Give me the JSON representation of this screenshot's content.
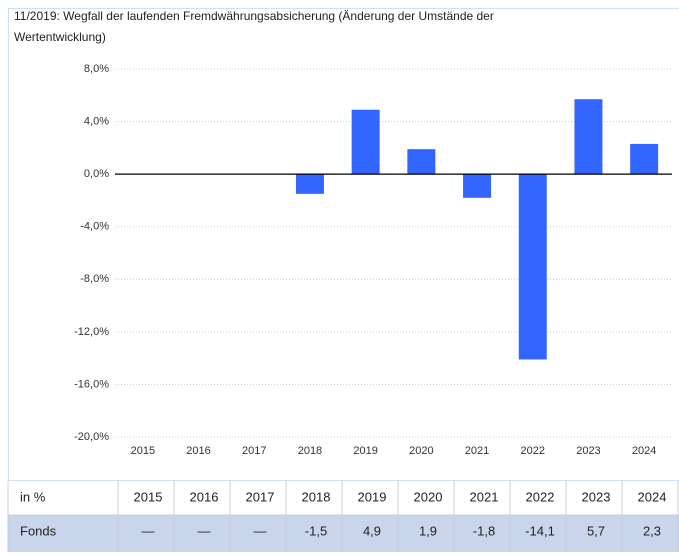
{
  "chart_data": {
    "type": "bar",
    "subtitle_lines": [
      "11/2019: Wegfall der laufenden Fremdwährungsabsicherung (Änderung der Umstände der",
      "Wertentwicklung)"
    ],
    "categories": [
      "2015",
      "2016",
      "2017",
      "2018",
      "2019",
      "2020",
      "2021",
      "2022",
      "2023",
      "2024"
    ],
    "series": [
      {
        "name": "Fonds",
        "color": "#3366ff",
        "values": [
          null,
          null,
          null,
          -1.5,
          4.9,
          1.9,
          -1.8,
          -14.1,
          5.7,
          2.3
        ],
        "value_labels": [
          "—",
          "—",
          "—",
          "-1,5",
          "4,9",
          "1,9",
          "-1,8",
          "-14,1",
          "5,7",
          "2,3"
        ]
      }
    ],
    "ylim": [
      -20,
      8
    ],
    "yticks": [
      {
        "value": 8,
        "label": "8,0%"
      },
      {
        "value": 4,
        "label": "4,0%"
      },
      {
        "value": 0,
        "label": "0,0%"
      },
      {
        "value": -4,
        "label": "-4,0%"
      },
      {
        "value": -8,
        "label": "-8,0%"
      },
      {
        "value": -12,
        "label": "-12,0%"
      },
      {
        "value": -16,
        "label": "-16,0%"
      },
      {
        "value": -20,
        "label": "-20,0%"
      }
    ],
    "grid": true,
    "table_corner": "in %"
  }
}
